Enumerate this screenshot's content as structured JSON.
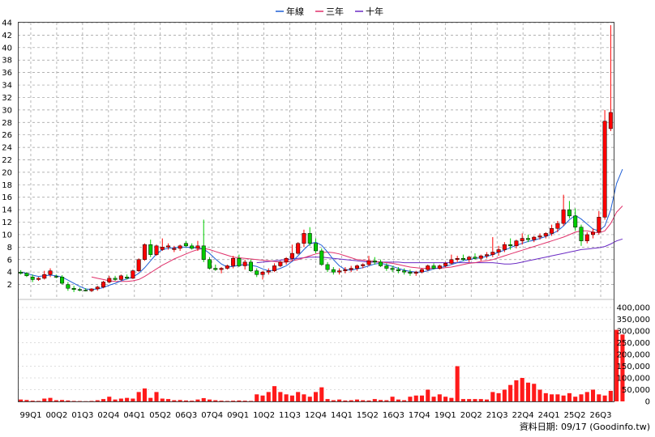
{
  "chart_data": {
    "type": "candlestick-with-volume",
    "price_axis": {
      "ylim": [
        0,
        44
      ],
      "ticks": [
        2,
        4,
        6,
        8,
        10,
        12,
        14,
        16,
        18,
        20,
        22,
        24,
        26,
        28,
        30,
        32,
        34,
        36,
        38,
        40,
        42,
        44
      ],
      "grid": true
    },
    "volume_axis": {
      "ylim": [
        0,
        400000
      ],
      "ticks": [
        "0",
        "50,000",
        "100,000",
        "150,000",
        "200,000",
        "250,000",
        "300,000",
        "350,000",
        "400,000"
      ],
      "tick_values": [
        0,
        50000,
        100000,
        150000,
        200000,
        250000,
        300000,
        350000,
        400000
      ]
    },
    "x_ticks": [
      "99Q1",
      "00Q2",
      "01Q3",
      "02Q4",
      "04Q1",
      "05Q2",
      "06Q3",
      "07Q4",
      "09Q1",
      "10Q2",
      "11Q3",
      "12Q4",
      "14Q1",
      "15Q2",
      "16Q3",
      "17Q4",
      "19Q1",
      "20Q2",
      "21Q3",
      "22Q4",
      "24Q1",
      "25Q2",
      "26Q3"
    ],
    "legend": [
      {
        "name": "年線",
        "color": "#1f5fd6"
      },
      {
        "name": "三年",
        "color": "#e0306a"
      },
      {
        "name": "十年",
        "color": "#6a2ac4"
      }
    ],
    "candles": [
      [
        4.0,
        4.3,
        3.6,
        3.8
      ],
      [
        3.8,
        4.0,
        3.2,
        3.4
      ],
      [
        3.2,
        3.6,
        2.4,
        2.8
      ],
      [
        2.8,
        3.2,
        2.6,
        3.0
      ],
      [
        3.0,
        4.2,
        2.8,
        3.6
      ],
      [
        3.6,
        4.6,
        3.2,
        4.2
      ],
      [
        3.3,
        3.6,
        3.0,
        3.2
      ],
      [
        3.2,
        3.5,
        2.0,
        2.2
      ],
      [
        2.0,
        2.4,
        1.0,
        1.4
      ],
      [
        1.4,
        1.8,
        0.8,
        1.2
      ],
      [
        1.2,
        1.5,
        0.9,
        1.1
      ],
      [
        1.1,
        1.4,
        0.9,
        1.0
      ],
      [
        1.0,
        1.4,
        0.8,
        1.3
      ],
      [
        1.3,
        1.8,
        1.0,
        1.6
      ],
      [
        1.6,
        2.6,
        1.4,
        2.4
      ],
      [
        2.4,
        3.4,
        2.2,
        3.0
      ],
      [
        3.0,
        3.4,
        2.6,
        2.8
      ],
      [
        2.8,
        3.6,
        2.6,
        3.4
      ],
      [
        3.2,
        3.6,
        2.8,
        3.0
      ],
      [
        3.0,
        4.4,
        2.9,
        4.2
      ],
      [
        4.2,
        6.2,
        4.0,
        6.0
      ],
      [
        6.0,
        8.6,
        5.8,
        8.4
      ],
      [
        8.4,
        9.2,
        6.4,
        6.8
      ],
      [
        6.8,
        8.4,
        6.6,
        8.2
      ],
      [
        7.6,
        9.4,
        7.4,
        8.0
      ],
      [
        8.0,
        8.6,
        7.6,
        8.2
      ],
      [
        7.6,
        8.2,
        7.2,
        7.8
      ],
      [
        7.8,
        8.4,
        7.4,
        8.2
      ],
      [
        8.6,
        9.0,
        8.0,
        8.2
      ],
      [
        8.2,
        8.6,
        7.6,
        7.8
      ],
      [
        7.8,
        9.0,
        7.4,
        8.2
      ],
      [
        8.2,
        12.4,
        5.6,
        6.0
      ],
      [
        6.0,
        6.4,
        4.4,
        4.6
      ],
      [
        4.6,
        5.2,
        4.2,
        4.4
      ],
      [
        4.4,
        4.8,
        3.8,
        4.6
      ],
      [
        4.6,
        5.2,
        4.4,
        5.0
      ],
      [
        5.0,
        6.6,
        4.6,
        6.2
      ],
      [
        6.2,
        6.8,
        4.8,
        5.0
      ],
      [
        5.0,
        6.0,
        4.4,
        5.6
      ],
      [
        5.6,
        6.0,
        4.0,
        4.2
      ],
      [
        4.2,
        4.6,
        3.2,
        3.6
      ],
      [
        3.6,
        4.2,
        2.8,
        4.0
      ],
      [
        4.0,
        4.6,
        3.6,
        4.2
      ],
      [
        4.2,
        5.4,
        4.0,
        5.0
      ],
      [
        5.0,
        5.8,
        4.8,
        5.6
      ],
      [
        5.6,
        6.4,
        5.2,
        6.2
      ],
      [
        6.2,
        8.4,
        5.8,
        7.0
      ],
      [
        7.0,
        8.8,
        6.8,
        8.6
      ],
      [
        8.6,
        10.8,
        8.0,
        10.2
      ],
      [
        10.2,
        11.2,
        8.2,
        8.6
      ],
      [
        8.6,
        9.4,
        7.0,
        7.4
      ],
      [
        7.4,
        7.8,
        5.0,
        5.2
      ],
      [
        5.2,
        5.6,
        4.0,
        4.4
      ],
      [
        4.4,
        4.8,
        3.6,
        4.0
      ],
      [
        4.0,
        4.6,
        3.6,
        4.2
      ],
      [
        4.2,
        4.8,
        3.8,
        4.4
      ],
      [
        4.4,
        5.0,
        4.0,
        4.6
      ],
      [
        4.6,
        5.2,
        4.2,
        5.0
      ],
      [
        5.0,
        5.4,
        4.6,
        5.2
      ],
      [
        5.2,
        6.6,
        5.0,
        5.8
      ],
      [
        5.8,
        6.4,
        5.2,
        5.6
      ],
      [
        5.6,
        6.0,
        4.8,
        5.0
      ],
      [
        5.0,
        5.4,
        4.2,
        4.6
      ],
      [
        4.6,
        5.0,
        4.0,
        4.4
      ],
      [
        4.4,
        4.8,
        3.8,
        4.2
      ],
      [
        4.2,
        4.6,
        3.6,
        4.0
      ],
      [
        4.0,
        4.4,
        3.4,
        3.8
      ],
      [
        3.8,
        4.2,
        3.4,
        4.0
      ],
      [
        4.0,
        4.6,
        3.8,
        4.4
      ],
      [
        4.4,
        5.2,
        4.2,
        5.0
      ],
      [
        5.0,
        5.4,
        4.4,
        4.6
      ],
      [
        4.6,
        5.2,
        4.4,
        5.0
      ],
      [
        5.0,
        5.6,
        4.8,
        5.4
      ],
      [
        5.4,
        6.8,
        5.2,
        6.0
      ],
      [
        6.0,
        6.6,
        5.6,
        6.2
      ],
      [
        6.2,
        6.8,
        5.8,
        6.0
      ],
      [
        6.0,
        6.6,
        5.6,
        6.4
      ],
      [
        6.4,
        7.0,
        6.0,
        6.2
      ],
      [
        6.2,
        6.8,
        5.8,
        6.6
      ],
      [
        6.6,
        7.2,
        6.2,
        6.8
      ],
      [
        6.8,
        9.6,
        6.4,
        7.2
      ],
      [
        7.2,
        8.2,
        6.6,
        7.6
      ],
      [
        7.6,
        8.8,
        7.2,
        8.4
      ],
      [
        8.4,
        9.4,
        7.6,
        8.2
      ],
      [
        8.2,
        9.2,
        7.8,
        9.0
      ],
      [
        9.0,
        10.2,
        8.4,
        9.4
      ],
      [
        9.4,
        10.0,
        8.8,
        9.2
      ],
      [
        9.2,
        9.8,
        8.8,
        9.6
      ],
      [
        9.6,
        10.2,
        9.2,
        9.8
      ],
      [
        9.8,
        10.4,
        9.4,
        10.2
      ],
      [
        10.2,
        11.6,
        9.8,
        11.0
      ],
      [
        11.0,
        12.2,
        10.4,
        11.8
      ],
      [
        11.8,
        16.4,
        11.4,
        14.0
      ],
      [
        14.0,
        15.4,
        12.6,
        13.0
      ],
      [
        13.0,
        14.2,
        10.6,
        11.2
      ],
      [
        11.2,
        11.6,
        8.2,
        9.0
      ],
      [
        9.0,
        10.4,
        8.6,
        10.0
      ],
      [
        10.0,
        11.0,
        9.4,
        10.4
      ],
      [
        10.4,
        13.8,
        10.0,
        12.8
      ],
      [
        12.8,
        30.0,
        12.4,
        28.2
      ],
      [
        27.0,
        43.6,
        26.6,
        29.6
      ]
    ],
    "ma_year": [
      4.0,
      3.8,
      3.5,
      3.3,
      3.4,
      3.5,
      3.4,
      3.2,
      2.7,
      2.2,
      1.7,
      1.3,
      1.2,
      1.3,
      1.5,
      1.9,
      2.2,
      2.6,
      2.9,
      3.2,
      3.8,
      4.7,
      5.8,
      6.9,
      7.6,
      7.8,
      7.9,
      8.0,
      8.0,
      7.9,
      7.9,
      7.7,
      7.0,
      6.1,
      5.3,
      4.8,
      4.9,
      5.1,
      5.2,
      5.1,
      4.9,
      4.5,
      4.2,
      4.3,
      4.6,
      5.0,
      5.7,
      6.6,
      7.6,
      8.5,
      8.8,
      8.3,
      7.2,
      6.0,
      5.0,
      4.4,
      4.3,
      4.5,
      4.7,
      5.0,
      5.3,
      5.4,
      5.2,
      4.9,
      4.6,
      4.3,
      4.1,
      4.0,
      4.0,
      4.2,
      4.5,
      4.7,
      4.9,
      5.2,
      5.5,
      5.8,
      6.0,
      6.2,
      6.3,
      6.5,
      6.8,
      7.2,
      7.5,
      7.9,
      8.3,
      8.6,
      8.9,
      9.1,
      9.4,
      9.7,
      10.1,
      10.6,
      11.4,
      12.4,
      13.1,
      12.5,
      11.7,
      10.9,
      10.6,
      11.4,
      14.0,
      18.2,
      20.5
    ],
    "ma_3y": [
      null,
      null,
      null,
      null,
      null,
      null,
      null,
      null,
      null,
      null,
      null,
      null,
      3.2,
      3.0,
      2.8,
      2.6,
      2.5,
      2.5,
      2.5,
      2.6,
      2.8,
      3.3,
      3.9,
      4.5,
      5.1,
      5.6,
      6.1,
      6.5,
      6.9,
      7.3,
      7.6,
      7.8,
      7.6,
      7.3,
      7.0,
      6.7,
      6.4,
      6.3,
      6.2,
      6.1,
      6.0,
      5.9,
      5.8,
      5.7,
      5.6,
      5.6,
      5.8,
      6.0,
      6.3,
      6.6,
      6.9,
      7.1,
      7.2,
      7.1,
      6.9,
      6.6,
      6.3,
      6.0,
      5.9,
      5.8,
      5.7,
      5.6,
      5.5,
      5.4,
      5.2,
      5.0,
      4.8,
      4.7,
      4.6,
      4.6,
      4.6,
      4.6,
      4.7,
      4.8,
      5.0,
      5.2,
      5.4,
      5.5,
      5.7,
      5.8,
      6.0,
      6.3,
      6.6,
      6.9,
      7.2,
      7.5,
      7.8,
      8.1,
      8.4,
      8.7,
      9.0,
      9.3,
      9.6,
      10.0,
      10.4,
      10.6,
      10.6,
      10.4,
      10.3,
      10.6,
      11.8,
      13.6,
      14.6
    ],
    "ma_10y": [
      null,
      null,
      null,
      null,
      null,
      null,
      null,
      null,
      null,
      null,
      null,
      null,
      null,
      null,
      null,
      null,
      null,
      null,
      null,
      null,
      null,
      null,
      null,
      null,
      null,
      null,
      null,
      null,
      null,
      null,
      null,
      null,
      null,
      null,
      null,
      null,
      null,
      null,
      null,
      null,
      5.5,
      5.6,
      5.7,
      5.8,
      5.9,
      6.0,
      6.1,
      6.2,
      6.3,
      6.4,
      6.4,
      6.4,
      6.3,
      6.2,
      6.1,
      6.0,
      5.9,
      5.8,
      5.7,
      5.6,
      5.6,
      5.6,
      5.6,
      5.6,
      5.6,
      5.5,
      5.5,
      5.5,
      5.5,
      5.5,
      5.5,
      5.5,
      5.5,
      5.5,
      5.5,
      5.5,
      5.5,
      5.5,
      5.5,
      5.5,
      5.5,
      5.4,
      5.3,
      5.3,
      5.4,
      5.6,
      5.8,
      6.0,
      6.2,
      6.4,
      6.6,
      6.8,
      7.0,
      7.2,
      7.4,
      7.6,
      7.7,
      7.8,
      7.9,
      8.1,
      8.5,
      9.0,
      9.3
    ],
    "volumes": [
      8000,
      6000,
      3000,
      2000,
      12000,
      15000,
      5000,
      6000,
      4000,
      2000,
      1500,
      1000,
      2000,
      5000,
      10000,
      20000,
      8000,
      12000,
      15000,
      12000,
      40000,
      55000,
      15000,
      40000,
      12000,
      10000,
      5000,
      6000,
      4000,
      3000,
      8000,
      14000,
      8000,
      5000,
      3000,
      2000,
      3000,
      4000,
      3000,
      2000,
      30000,
      25000,
      40000,
      65000,
      40000,
      30000,
      25000,
      40000,
      30000,
      20000,
      40000,
      60000,
      10000,
      5000,
      8000,
      4000,
      5000,
      8000,
      5000,
      4000,
      10000,
      6000,
      5000,
      20000,
      8000,
      5000,
      20000,
      25000,
      25000,
      50000,
      20000,
      30000,
      20000,
      15000,
      150000,
      10000,
      10000,
      10000,
      10000,
      8000,
      40000,
      35000,
      50000,
      70000,
      90000,
      100000,
      80000,
      75000,
      50000,
      35000,
      30000,
      30000,
      25000,
      35000,
      20000,
      30000,
      40000,
      50000,
      30000,
      25000,
      45000,
      305000,
      285000
    ]
  },
  "footer": {
    "source_label": "資料日期: 09/17  (Goodinfo.tw)"
  }
}
